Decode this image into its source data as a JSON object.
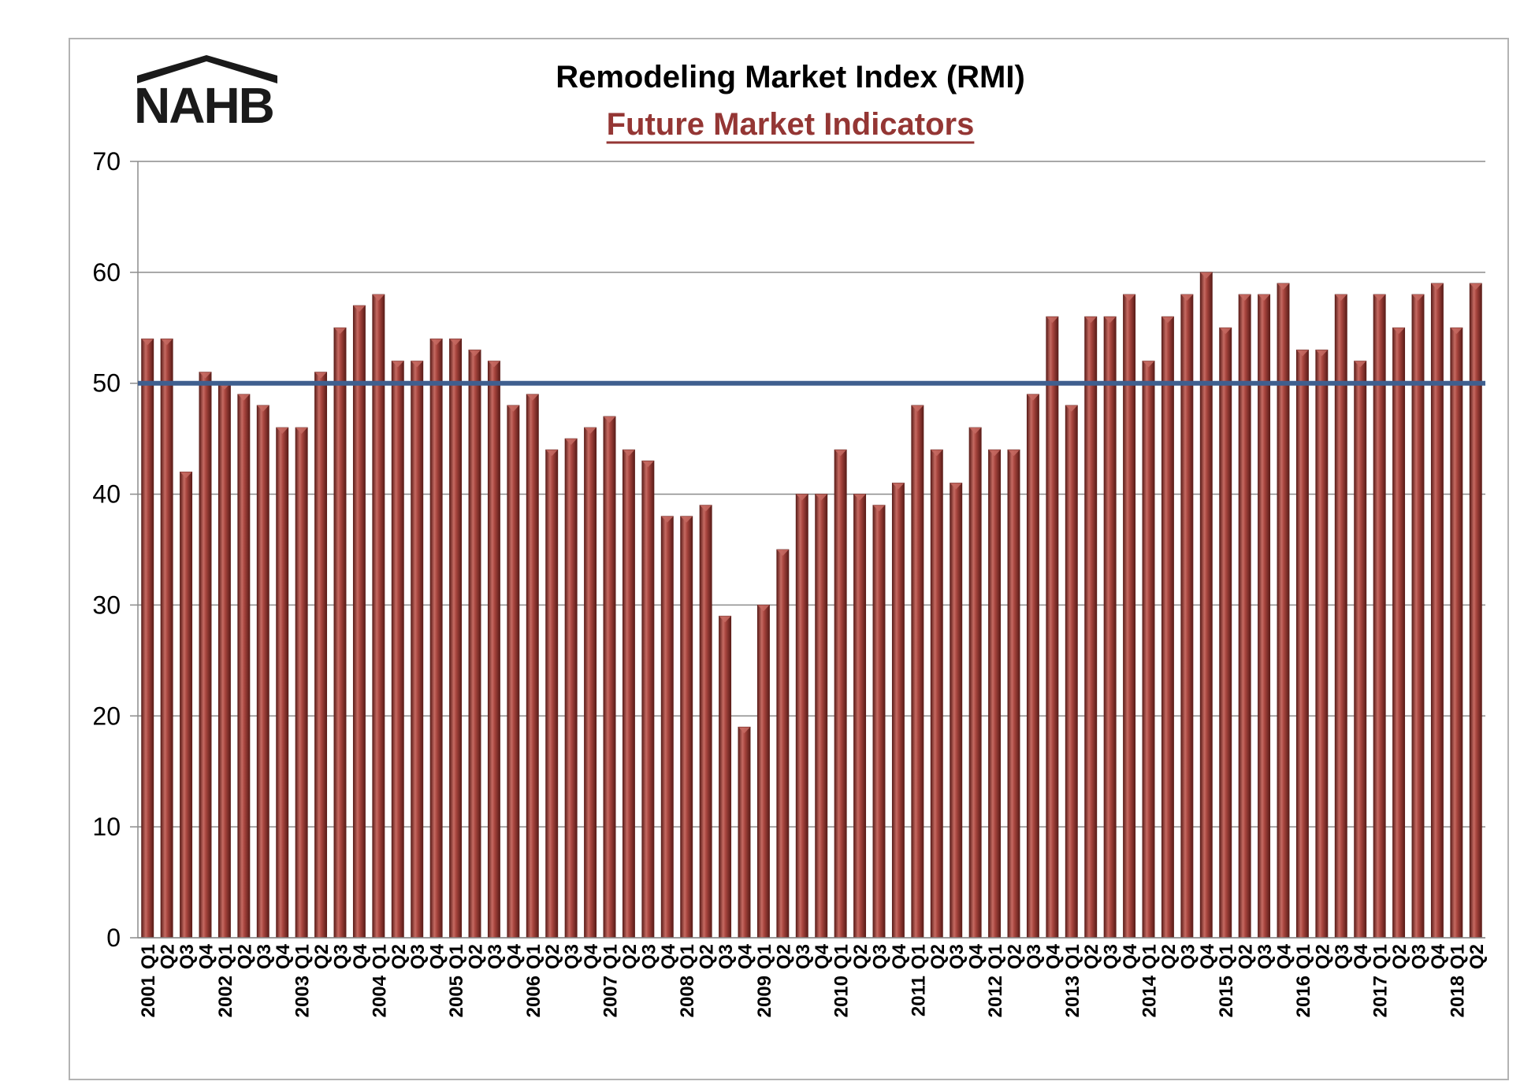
{
  "logo": {
    "text": "NAHB"
  },
  "chart_data": {
    "type": "bar",
    "title": "Remodeling Market Index (RMI)",
    "subtitle": "Future Market Indicators",
    "ylim": [
      0,
      70
    ],
    "yticks": [
      0,
      10,
      20,
      30,
      40,
      50,
      60,
      70
    ],
    "grid": true,
    "reference_line": 50,
    "years": [
      "2001",
      "2002",
      "2003",
      "2004",
      "2005",
      "2006",
      "2007",
      "2008",
      "2009",
      "2010",
      "2011",
      "2012",
      "2013",
      "2014",
      "2015",
      "2016",
      "2017",
      "2018"
    ],
    "categories": [
      "2001 Q1",
      "Q2",
      "Q3",
      "Q4",
      "2002 Q1",
      "Q2",
      "Q3",
      "Q4",
      "2003 Q1",
      "Q2",
      "Q3",
      "Q4",
      "2004 Q1",
      "Q2",
      "Q3",
      "Q4",
      "2005 Q1",
      "Q2",
      "Q3",
      "Q4",
      "2006 Q1",
      "Q2",
      "Q3",
      "Q4",
      "2007 Q1",
      "Q2",
      "Q3",
      "Q4",
      "2008 Q1",
      "Q2",
      "Q3",
      "Q4",
      "2009 Q1",
      "Q2",
      "Q3",
      "Q4",
      "2010 Q1",
      "Q2",
      "Q3",
      "Q4",
      "2011 Q1",
      "Q2",
      "Q3",
      "Q4",
      "2012 Q1",
      "Q2",
      "Q3",
      "Q4",
      "2013 Q1",
      "Q2",
      "Q3",
      "Q4",
      "2014 Q1",
      "Q2",
      "Q3",
      "Q4",
      "2015 Q1",
      "Q2",
      "Q3",
      "Q4",
      "2016 Q1",
      "Q2",
      "Q3",
      "Q4",
      "2017 Q1",
      "Q2",
      "Q3",
      "Q4",
      "2018 Q1",
      "Q2"
    ],
    "values": [
      54,
      54,
      42,
      51,
      50,
      49,
      48,
      46,
      46,
      51,
      55,
      57,
      58,
      52,
      52,
      54,
      54,
      53,
      52,
      48,
      49,
      44,
      45,
      46,
      47,
      44,
      43,
      38,
      38,
      39,
      29,
      19,
      30,
      35,
      40,
      40,
      44,
      40,
      39,
      41,
      48,
      44,
      41,
      46,
      44,
      44,
      49,
      56,
      48,
      56,
      56,
      58,
      52,
      56,
      58,
      60,
      55,
      58,
      58,
      59,
      53,
      53,
      58,
      52,
      58,
      55,
      58,
      59,
      55,
      59
    ],
    "colors": {
      "bar": "#9b3b35",
      "bar_dark": "#5e1f1b",
      "bar_light": "#c56a62",
      "reference": "#3f5f8f",
      "subtitle": "#943634",
      "grid": "#8c8c8c"
    }
  }
}
